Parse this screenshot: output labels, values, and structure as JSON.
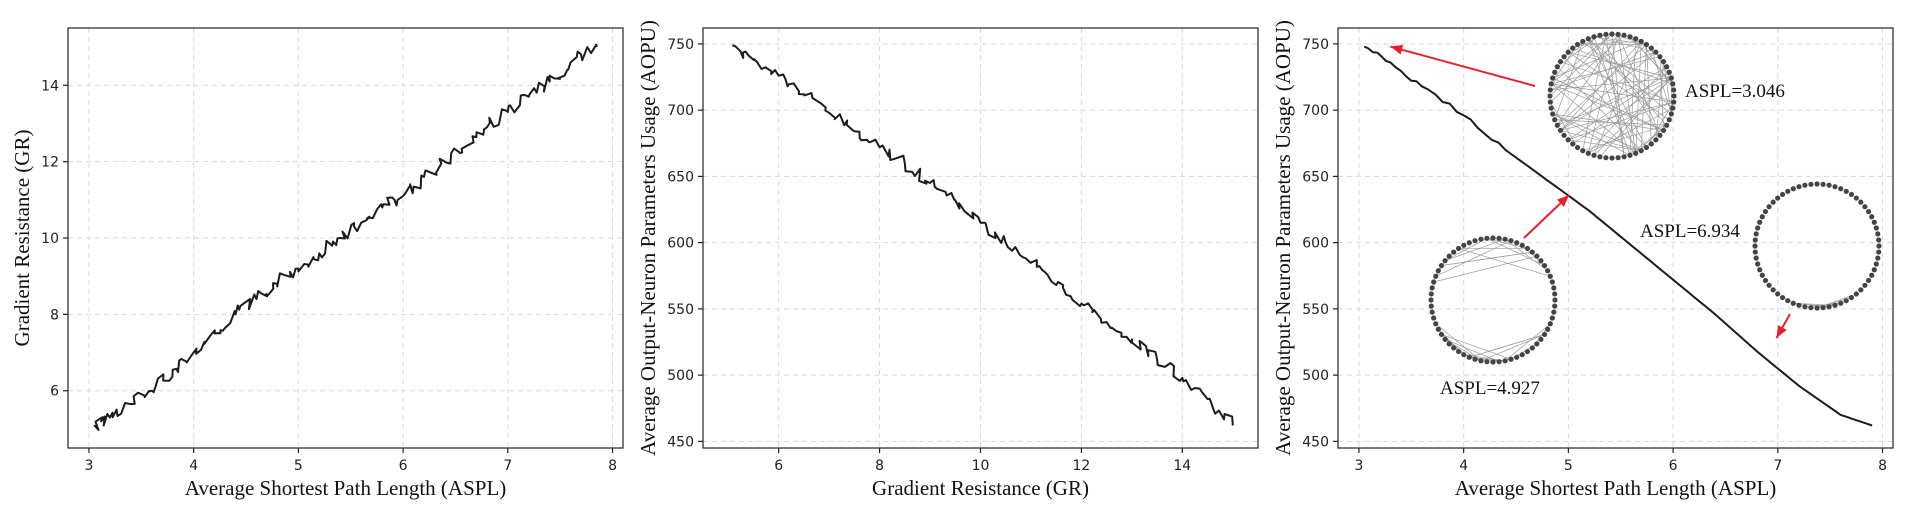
{
  "chart_data": [
    {
      "type": "line",
      "xlabel": "Average Shortest Path Length (ASPL)",
      "ylabel": "Gradient Resistance (GR)",
      "xlim": [
        2.8,
        8.1
      ],
      "ylim": [
        4.5,
        15.5
      ],
      "xticks": [
        3,
        4,
        5,
        6,
        7,
        8
      ],
      "yticks": [
        6,
        8,
        10,
        12,
        14
      ],
      "grid": true,
      "series": [
        {
          "x": [
            3.05,
            3.2,
            3.4,
            3.6,
            3.8,
            4.0,
            4.2,
            4.4,
            4.6,
            4.8,
            5.0,
            5.2,
            5.4,
            5.6,
            5.8,
            6.0,
            6.2,
            6.4,
            6.6,
            6.8,
            7.0,
            7.2,
            7.4,
            7.6,
            7.85
          ],
          "y": [
            5.1,
            5.3,
            5.65,
            6.0,
            6.55,
            7.0,
            7.5,
            8.0,
            8.4,
            8.8,
            9.2,
            9.6,
            10.0,
            10.4,
            10.8,
            11.1,
            11.6,
            12.0,
            12.4,
            12.9,
            13.3,
            13.7,
            14.1,
            14.6,
            15.0
          ]
        }
      ]
    },
    {
      "type": "line",
      "xlabel": "Gradient Resistance (GR)",
      "ylabel": "Average Output-Neuron Parameters Usage (AOPU)",
      "xlim": [
        4.5,
        15.5
      ],
      "ylim": [
        445,
        762
      ],
      "xticks": [
        6,
        8,
        10,
        12,
        14
      ],
      "yticks": [
        450,
        500,
        550,
        600,
        650,
        700,
        750
      ],
      "grid": true,
      "series": [
        {
          "x": [
            5.1,
            5.5,
            6.0,
            6.5,
            7.0,
            7.5,
            8.0,
            8.5,
            9.0,
            9.5,
            10.0,
            10.5,
            11.0,
            11.5,
            12.0,
            12.5,
            13.0,
            13.5,
            14.0,
            14.5,
            15.0
          ],
          "y": [
            748,
            738,
            726,
            712,
            698,
            684,
            672,
            660,
            645,
            632,
            615,
            600,
            585,
            568,
            554,
            540,
            527,
            512,
            498,
            482,
            462
          ]
        }
      ]
    },
    {
      "type": "line",
      "xlabel": "Average Shortest Path Length (ASPL)",
      "ylabel": "Average Output-Neuron Parameters Usage (AOPU)",
      "xlim": [
        2.8,
        8.1
      ],
      "ylim": [
        445,
        762
      ],
      "xticks": [
        3,
        4,
        5,
        6,
        7,
        8
      ],
      "yticks": [
        450,
        500,
        550,
        600,
        650,
        700,
        750
      ],
      "grid": true,
      "series": [
        {
          "x": [
            3.05,
            3.3,
            3.6,
            4.0,
            4.4,
            4.8,
            5.2,
            5.6,
            6.0,
            6.4,
            6.8,
            7.2,
            7.6,
            7.9
          ],
          "y": [
            748,
            736,
            718,
            696,
            670,
            647,
            624,
            598,
            572,
            546,
            518,
            492,
            470,
            462
          ]
        }
      ],
      "annotations": [
        {
          "text": "ASPL=3.046",
          "points_to": [
            3.3,
            748
          ]
        },
        {
          "text": "ASPL=4.927",
          "points_to": [
            4.95,
            642
          ]
        },
        {
          "text": "ASPL=6.934",
          "points_to": [
            6.93,
            522
          ]
        }
      ]
    }
  ]
}
